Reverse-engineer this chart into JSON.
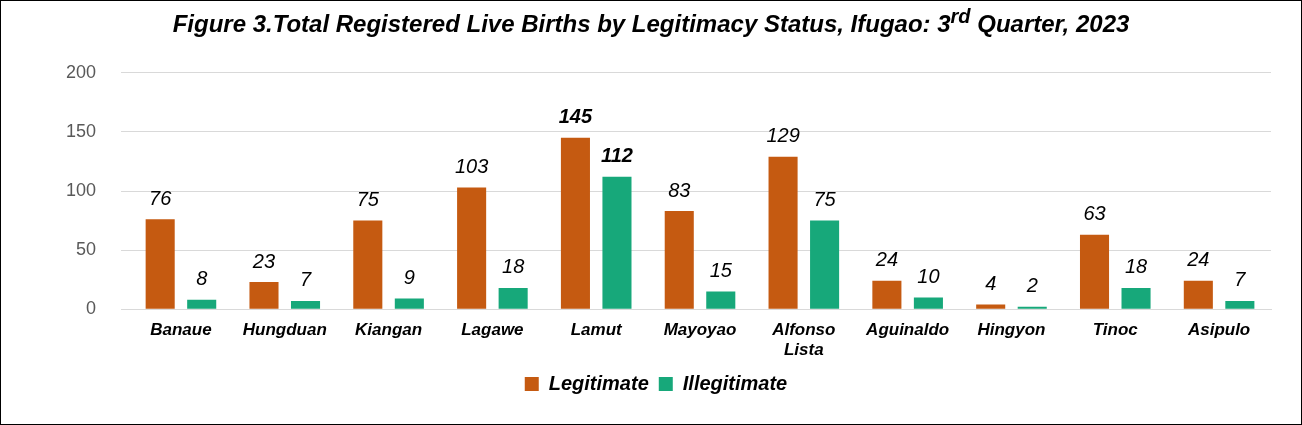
{
  "chart_data": {
    "type": "bar",
    "title": "Figure 3.Total Registered Live Births by Legitimacy Status, Ifugao: 3$^{rd}$ Quarter, 2023",
    "categories": [
      "Banaue",
      "Hungduan",
      "Kiangan",
      "Lagawe",
      "Lamut",
      "Mayoyao",
      "Alfonso Lista",
      "Aguinaldo",
      "Hingyon",
      "Tinoc",
      "Asipulo"
    ],
    "series": [
      {
        "name": "Legitimate",
        "color": "#c55a11",
        "values": [
          76,
          23,
          75,
          103,
          145,
          83,
          129,
          24,
          4,
          63,
          24
        ]
      },
      {
        "name": "Illegitimate",
        "color": "#17a87a",
        "values": [
          8,
          7,
          9,
          18,
          112,
          15,
          75,
          10,
          2,
          18,
          7
        ]
      }
    ],
    "ylim": [
      0,
      200
    ],
    "yticks": [
      0,
      50,
      100,
      150,
      200
    ],
    "grid": "y",
    "legend": "bottom",
    "data_labels": true
  }
}
